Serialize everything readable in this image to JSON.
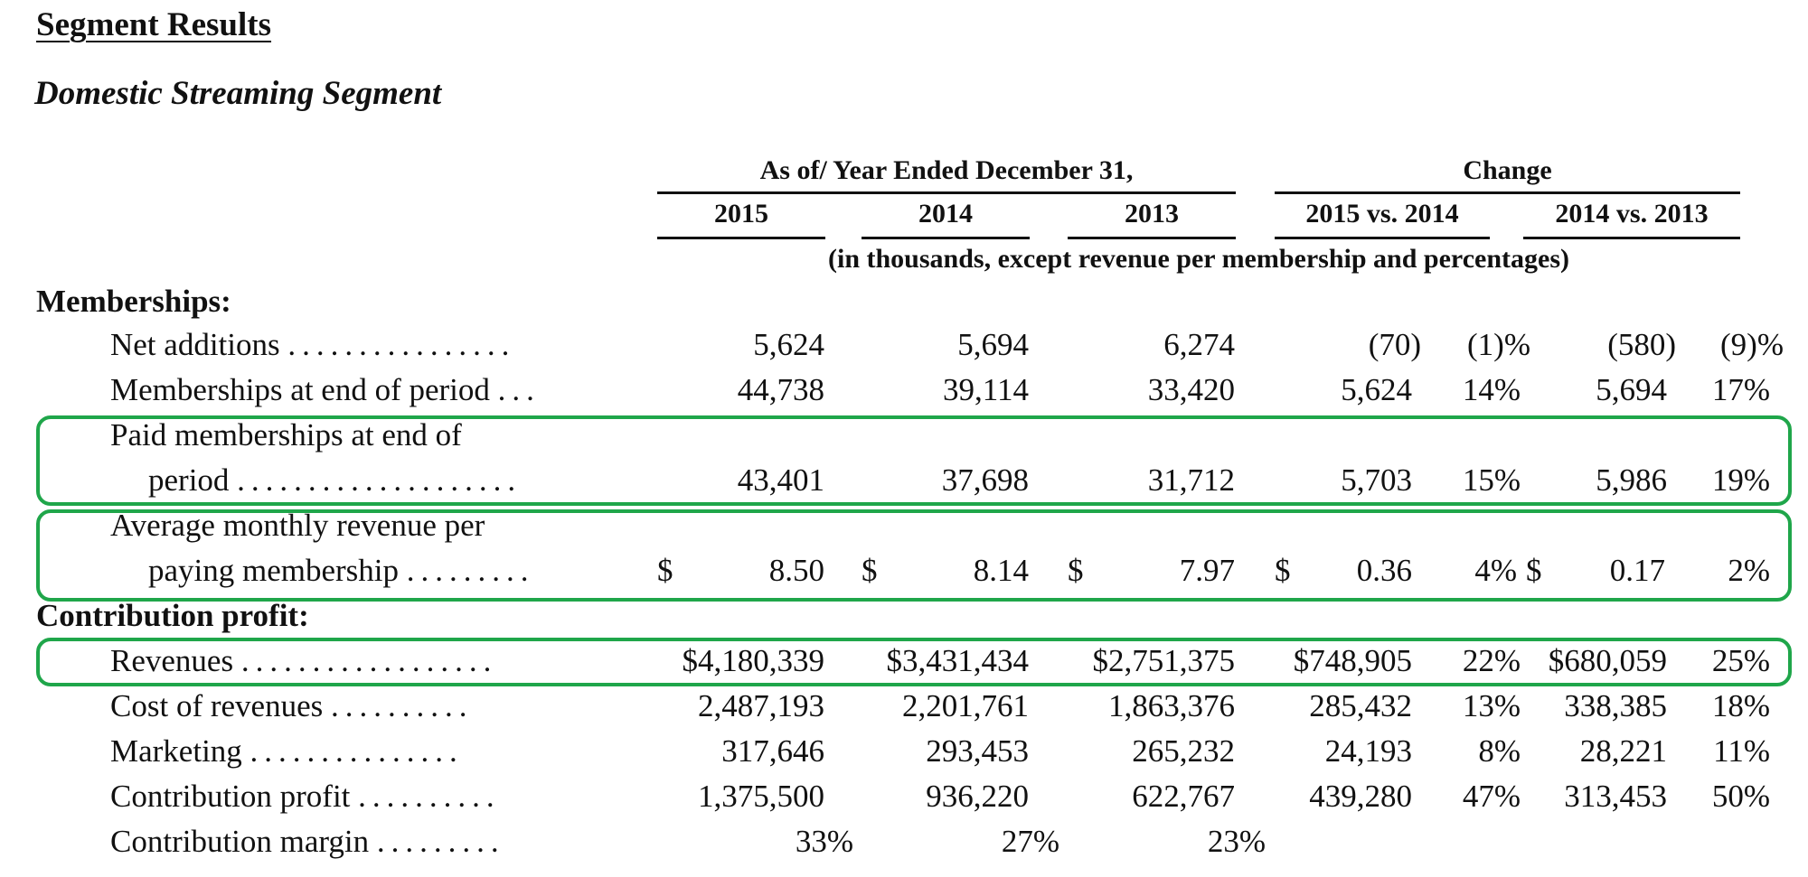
{
  "title": "Segment Results",
  "subtitle": "Domestic Streaming Segment",
  "header": {
    "group_years": "As of/ Year Ended December 31,",
    "group_change": "Change",
    "years": [
      "2015",
      "2014",
      "2013"
    ],
    "changes": [
      "2015 vs. 2014",
      "2014 vs. 2013"
    ],
    "units_note": "(in thousands, except revenue per membership and percentages)"
  },
  "sections": {
    "memberships": "Memberships:",
    "contribution": "Contribution profit:"
  },
  "rows": {
    "net_additions": {
      "label": "Net additions",
      "dots": "................",
      "v2015": "5,624",
      "v2014": "5,694",
      "v2013": "6,274",
      "c1": "(70)",
      "c1p": "(1)%",
      "c2": "(580)",
      "c2p": "(9)%"
    },
    "memberships_end": {
      "label": "Memberships at end of period",
      "dots": "...",
      "v2015": "44,738",
      "v2014": "39,114",
      "v2013": "33,420",
      "c1": "5,624",
      "c1p": "14%",
      "c2": "5,694",
      "c2p": "17%"
    },
    "paid_memberships": {
      "label1": "Paid memberships at end of",
      "label2": "period",
      "dots": "....................",
      "v2015": "43,401",
      "v2014": "37,698",
      "v2013": "31,712",
      "c1": "5,703",
      "c1p": "15%",
      "c2": "5,986",
      "c2p": "19%"
    },
    "avg_revenue": {
      "label1": "Average monthly revenue per",
      "label2": "paying membership",
      "dots": ".........",
      "currency": "$",
      "v2015": "8.50",
      "v2014": "8.14",
      "v2013": "7.97",
      "c1": "0.36",
      "c1p": "4%",
      "c2": "0.17",
      "c2p": "2%"
    },
    "revenues": {
      "label": "Revenues",
      "dots": "..................",
      "v2015": "$4,180,339",
      "v2014": "$3,431,434",
      "v2013": "$2,751,375",
      "c1": "$748,905",
      "c1p": "22%",
      "c2": "$680,059",
      "c2p": "25%"
    },
    "cost_of_revenues": {
      "label": "Cost of revenues",
      "dots": "..........",
      "v2015": "2,487,193",
      "v2014": "2,201,761",
      "v2013": "1,863,376",
      "c1": "285,432",
      "c1p": "13%",
      "c2": "338,385",
      "c2p": "18%"
    },
    "marketing": {
      "label": "Marketing",
      "dots": "...............",
      "v2015": "317,646",
      "v2014": "293,453",
      "v2013": "265,232",
      "c1": "24,193",
      "c1p": "8%",
      "c2": "28,221",
      "c2p": "11%"
    },
    "contribution_profit": {
      "label": "Contribution profit",
      "dots": "..........",
      "v2015": "1,375,500",
      "v2014": "936,220",
      "v2013": "622,767",
      "c1": "439,280",
      "c1p": "47%",
      "c2": "313,453",
      "c2p": "50%"
    },
    "contribution_margin": {
      "label": "Contribution margin",
      "dots": ".........",
      "v2015": "33%",
      "v2014": "27%",
      "v2013": "23%"
    }
  },
  "highlight_color": "#1fa64a"
}
